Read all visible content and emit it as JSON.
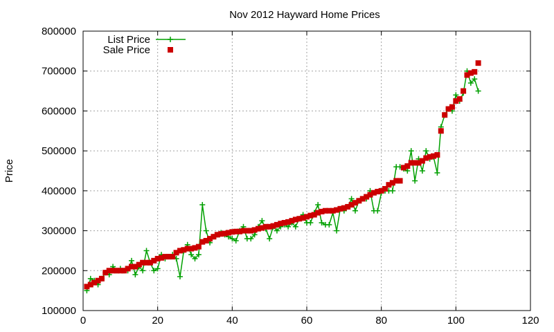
{
  "chart_data": {
    "type": "scatter",
    "title": "Nov 2012 Hayward Home Prices",
    "xlabel": "",
    "ylabel": "Price",
    "xlim": [
      0,
      120
    ],
    "ylim": [
      100000,
      800000
    ],
    "xticks": [
      "0",
      "20",
      "40",
      "60",
      "80",
      "100",
      "120"
    ],
    "yticks": [
      "100000",
      "200000",
      "300000",
      "400000",
      "500000",
      "600000",
      "700000",
      "800000"
    ],
    "grid": true,
    "legend_position": "top-left",
    "series": [
      {
        "name": "List Price",
        "style": "line-with-plus-markers",
        "color": "#00a000",
        "x": [
          1,
          2,
          3,
          4,
          5,
          6,
          7,
          8,
          9,
          10,
          11,
          12,
          13,
          14,
          15,
          16,
          17,
          18,
          19,
          20,
          21,
          22,
          23,
          24,
          25,
          26,
          27,
          28,
          29,
          30,
          31,
          32,
          33,
          34,
          35,
          36,
          37,
          38,
          39,
          40,
          41,
          42,
          43,
          44,
          45,
          46,
          47,
          48,
          49,
          50,
          51,
          52,
          53,
          54,
          55,
          56,
          57,
          58,
          59,
          60,
          61,
          62,
          63,
          64,
          65,
          66,
          67,
          68,
          69,
          70,
          71,
          72,
          73,
          74,
          75,
          76,
          77,
          78,
          79,
          80,
          81,
          82,
          83,
          84,
          85,
          86,
          87,
          88,
          89,
          90,
          91,
          92,
          93,
          94,
          95,
          96,
          97,
          98,
          99,
          100,
          101,
          102,
          103,
          104,
          105,
          106
        ],
        "values": [
          150000,
          180000,
          175000,
          165000,
          180000,
          195000,
          190000,
          210000,
          200000,
          205000,
          200000,
          200000,
          225000,
          190000,
          210000,
          200000,
          250000,
          220000,
          200000,
          205000,
          240000,
          230000,
          235000,
          240000,
          230000,
          185000,
          250000,
          265000,
          240000,
          230000,
          240000,
          365000,
          300000,
          270000,
          285000,
          290000,
          295000,
          290000,
          285000,
          280000,
          275000,
          300000,
          310000,
          280000,
          280000,
          290000,
          310000,
          325000,
          305000,
          280000,
          310000,
          300000,
          310000,
          315000,
          310000,
          320000,
          310000,
          330000,
          340000,
          320000,
          320000,
          345000,
          365000,
          320000,
          315000,
          315000,
          345000,
          300000,
          355000,
          350000,
          360000,
          380000,
          350000,
          375000,
          380000,
          380000,
          400000,
          350000,
          350000,
          395000,
          400000,
          400000,
          400000,
          460000,
          460000,
          455000,
          450000,
          500000,
          425000,
          480000,
          450000,
          500000,
          480000,
          485000,
          445000,
          560000,
          590000,
          605000,
          600000,
          640000,
          625000,
          645000,
          700000,
          670000,
          680000,
          650000
        ]
      },
      {
        "name": "Sale Price",
        "style": "square-markers",
        "color": "#cc0000",
        "x": [
          1,
          2,
          3,
          4,
          5,
          6,
          7,
          8,
          9,
          10,
          11,
          12,
          13,
          14,
          15,
          16,
          17,
          18,
          19,
          20,
          21,
          22,
          23,
          24,
          25,
          26,
          27,
          28,
          29,
          30,
          31,
          32,
          33,
          34,
          35,
          36,
          37,
          38,
          39,
          40,
          41,
          42,
          43,
          44,
          45,
          46,
          47,
          48,
          49,
          50,
          51,
          52,
          53,
          54,
          55,
          56,
          57,
          58,
          59,
          60,
          61,
          62,
          63,
          64,
          65,
          66,
          67,
          68,
          69,
          70,
          71,
          72,
          73,
          74,
          75,
          76,
          77,
          78,
          79,
          80,
          81,
          82,
          83,
          84,
          85,
          86,
          87,
          88,
          89,
          90,
          91,
          92,
          93,
          94,
          95,
          96,
          97,
          98,
          99,
          100,
          101,
          102,
          103,
          104,
          105,
          106
        ],
        "values": [
          160000,
          165000,
          170000,
          175000,
          180000,
          195000,
          200000,
          200000,
          200000,
          200000,
          200000,
          205000,
          210000,
          210000,
          215000,
          220000,
          220000,
          220000,
          225000,
          230000,
          232000,
          235000,
          235000,
          235000,
          245000,
          250000,
          252000,
          255000,
          255000,
          257000,
          260000,
          272000,
          275000,
          280000,
          285000,
          290000,
          292000,
          293000,
          295000,
          297000,
          298000,
          298000,
          300000,
          300000,
          300000,
          302000,
          305000,
          307000,
          310000,
          310000,
          312000,
          315000,
          318000,
          320000,
          322000,
          325000,
          328000,
          330000,
          332000,
          335000,
          338000,
          340000,
          345000,
          348000,
          350000,
          350000,
          350000,
          352000,
          355000,
          357000,
          360000,
          365000,
          370000,
          375000,
          380000,
          385000,
          390000,
          395000,
          398000,
          400000,
          405000,
          415000,
          420000,
          425000,
          425000,
          458000,
          462000,
          470000,
          470000,
          470000,
          475000,
          482000,
          485000,
          487000,
          490000,
          550000,
          590000,
          605000,
          610000,
          625000,
          630000,
          650000,
          690000,
          695000,
          698000,
          720000
        ]
      }
    ]
  }
}
